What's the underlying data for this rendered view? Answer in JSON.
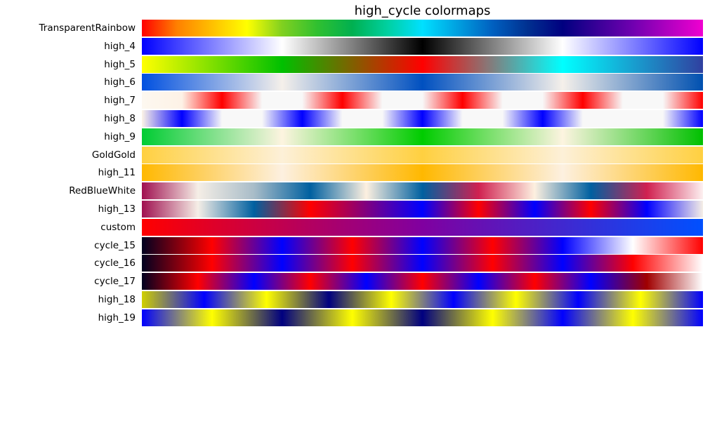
{
  "chart_data": {
    "type": "heatmap",
    "title": "high_cycle colormaps",
    "colormaps": [
      {
        "name": "TransparentRainbow",
        "colors": [
          "#ff0000",
          "#ff8000",
          "#ffc000",
          "#ffff00",
          "#80d020",
          "#30c030",
          "#00b050",
          "#00d0a0",
          "#00e0ff",
          "#00a0e0",
          "#0060c0",
          "#003090",
          "#000080",
          "#3a0098",
          "#7000b0",
          "#b000c0",
          "#f000d0"
        ]
      },
      {
        "name": "high_4",
        "colors": [
          "#0000ff",
          "#8080ff",
          "#ffffff",
          "#808080",
          "#000000",
          "#808080",
          "#ffffff",
          "#8080ff",
          "#0000ff"
        ]
      },
      {
        "name": "high_5",
        "colors": [
          "#ffff00",
          "#00c000",
          "#ff0000",
          "#00ffff",
          "#3040a0"
        ]
      },
      {
        "name": "high_6",
        "colors": [
          "#0050e0",
          "#f5f0ea",
          "#0050c0",
          "#f5f0ea",
          "#0050b0"
        ]
      },
      {
        "name": "high_7",
        "colors": [
          "#fdf8f0",
          "#fdf2e6",
          "#ff0000",
          "#f8f8f8",
          "#f8f8f8",
          "#ff0000",
          "#f8f8f8",
          "#f8f8f8",
          "#ff0000",
          "#f8f8f8",
          "#f8f8f8",
          "#ff0000",
          "#f8f8f8",
          "#f8f8f8",
          "#ff0000"
        ]
      },
      {
        "name": "high_8",
        "colors": [
          "#fdf4e6",
          "#0000ff",
          "#f8f8f8",
          "#f8f8f8",
          "#0000ff",
          "#f8f8f8",
          "#f8f8f8",
          "#0000ff",
          "#f8f8f8",
          "#f8f8f8",
          "#0000ff",
          "#f8f8f8",
          "#f8f8f8",
          "#f8f8f8",
          "#0000ff"
        ]
      },
      {
        "name": "high_9",
        "colors": [
          "#00cc33",
          "#fdf4e0",
          "#00cc00",
          "#fdf4e0",
          "#00c000"
        ]
      },
      {
        "name": "GoldGold",
        "colors": [
          "#ffd040",
          "#fdf0d8",
          "#ffd040",
          "#fdf0d8",
          "#ffd040"
        ]
      },
      {
        "name": "high_11",
        "colors": [
          "#ffb800",
          "#fdf0e0",
          "#ffb800",
          "#fdf0e0",
          "#ffb800"
        ]
      },
      {
        "name": "RedBlueWhite",
        "colors": [
          "#a01050",
          "#f5eee6",
          "#a8bcc8",
          "#0060a0",
          "#fdf0e0",
          "#0060a0",
          "#d02050",
          "#fdf0e0",
          "#0060a0",
          "#d02050",
          "#fdf0f0"
        ]
      },
      {
        "name": "high_13",
        "colors": [
          "#a01050",
          "#f5eee6",
          "#0060a0",
          "#ff0000",
          "#800080",
          "#0000ff",
          "#ff0000",
          "#0000ff",
          "#ff0000",
          "#0000ff",
          "#f5eee6"
        ]
      },
      {
        "name": "custom",
        "colors": [
          "#ff0000",
          "#8000a0",
          "#0050ff"
        ]
      },
      {
        "name": "cycle_15",
        "colors": [
          "#000020",
          "#ff0000",
          "#0000ff",
          "#ff0000",
          "#0000ff",
          "#ff0000",
          "#0000ff",
          "#ffffff",
          "#ff0000"
        ]
      },
      {
        "name": "cycle_16",
        "colors": [
          "#000020",
          "#ff0000",
          "#0000ff",
          "#ff0000",
          "#0000ff",
          "#ff0000",
          "#0000ff",
          "#ff0000",
          "#ffffff"
        ]
      },
      {
        "name": "cycle_17",
        "colors": [
          "#000020",
          "#ff0000",
          "#0000ff",
          "#ff0000",
          "#0000ff",
          "#ff0000",
          "#0000ff",
          "#ff0000",
          "#0000ff",
          "#a00000",
          "#ffffff"
        ]
      },
      {
        "name": "high_18",
        "colors": [
          "#d0d000",
          "#0000ff",
          "#ffff00",
          "#000080",
          "#ffff00",
          "#0000ff",
          "#ffff00",
          "#0000ff",
          "#ffff00",
          "#0000ff"
        ]
      },
      {
        "name": "high_19",
        "colors": [
          "#0000ff",
          "#ffff00",
          "#000080",
          "#ffff00",
          "#000080",
          "#ffff00",
          "#0000ff",
          "#ffff00",
          "#0000ff"
        ]
      }
    ]
  }
}
